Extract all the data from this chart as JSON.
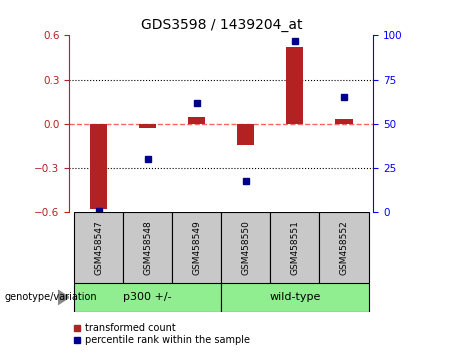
{
  "title": "GDS3598 / 1439204_at",
  "samples": [
    "GSM458547",
    "GSM458548",
    "GSM458549",
    "GSM458550",
    "GSM458551",
    "GSM458552"
  ],
  "red_values": [
    -0.58,
    -0.03,
    0.05,
    -0.14,
    0.52,
    0.03
  ],
  "blue_values": [
    1,
    30,
    62,
    18,
    97,
    65
  ],
  "ylim_left": [
    -0.6,
    0.6
  ],
  "ylim_right": [
    0,
    100
  ],
  "yticks_left": [
    -0.6,
    -0.3,
    0.0,
    0.3,
    0.6
  ],
  "yticks_right": [
    0,
    25,
    50,
    75,
    100
  ],
  "group_label": "genotype/variation",
  "red_color": "#B22222",
  "blue_color": "#00008B",
  "bar_width": 0.35,
  "legend_red": "transformed count",
  "legend_blue": "percentile rank within the sample",
  "zero_line_color": "#FF6666",
  "dotted_line_color": "#000000",
  "label_area_color": "#C8C8C8",
  "group_area_color": "#90EE90",
  "groups_info": [
    {
      "label": "p300 +/-",
      "start": 0,
      "end": 2
    },
    {
      "label": "wild-type",
      "start": 3,
      "end": 5
    }
  ]
}
